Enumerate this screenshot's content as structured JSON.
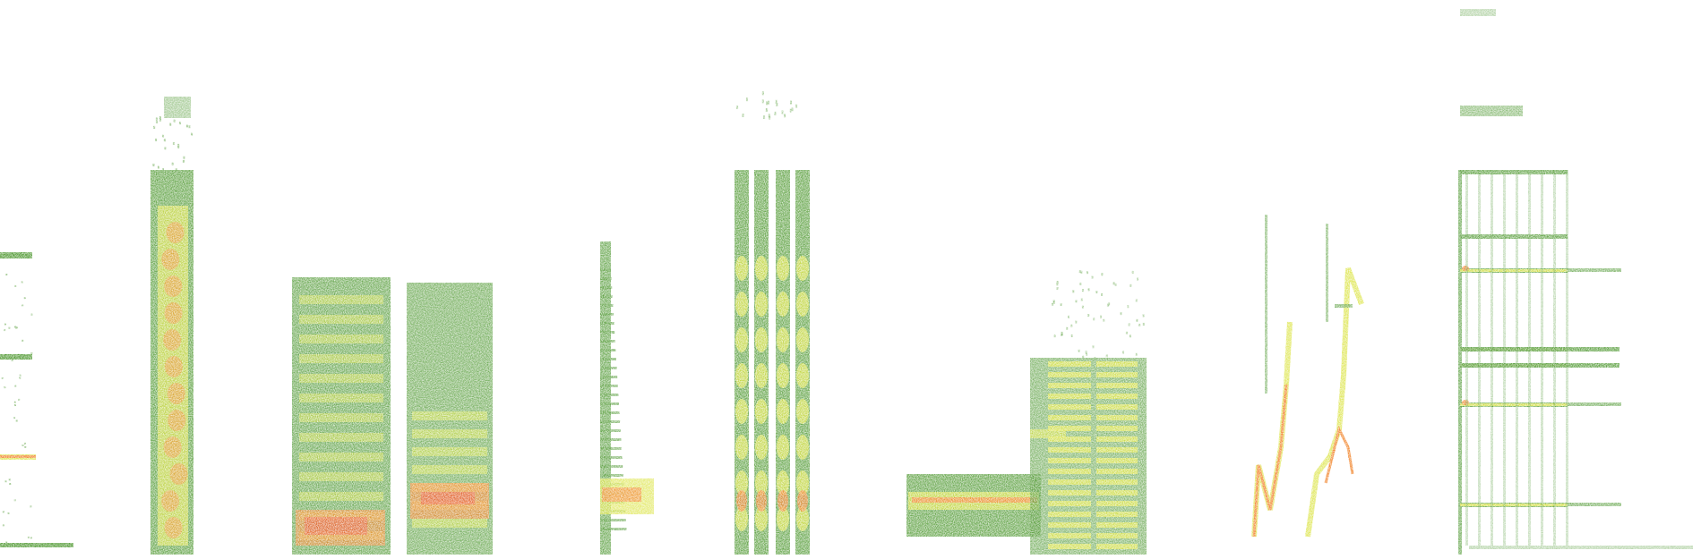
{
  "palette": {
    "background": "#ffffff",
    "low": "#3f8f1f",
    "mid": "#d9e23a",
    "high": "#f07a1a",
    "peak": "#e8401a"
  },
  "segments": [
    {
      "id": "seg-1",
      "shape": "tonal-lines"
    },
    {
      "id": "seg-2",
      "shape": "tall-narrow-burst"
    },
    {
      "id": "seg-3",
      "shape": "broadband-block"
    },
    {
      "id": "seg-4",
      "shape": "broadband-block"
    },
    {
      "id": "seg-5",
      "shape": "harmonic-stack"
    },
    {
      "id": "seg-6",
      "shape": "pulsed-columns"
    },
    {
      "id": "seg-7",
      "shape": "ladder-harmonics"
    },
    {
      "id": "seg-8",
      "shape": "frequency-sweeps"
    },
    {
      "id": "seg-9",
      "shape": "tonal-harmonics"
    }
  ]
}
